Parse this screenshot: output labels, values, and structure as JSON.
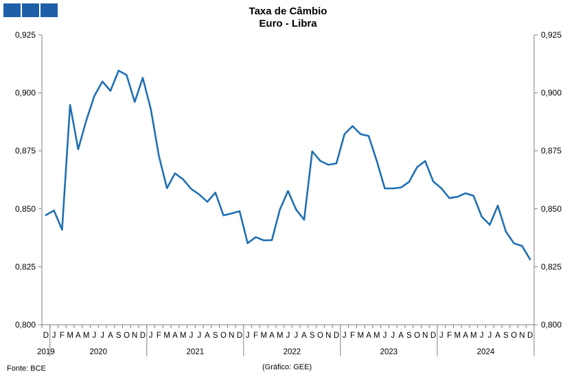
{
  "header": {
    "logo_icon": "gee-logo-icon",
    "logo_color": "#1f5fa8"
  },
  "footer": {
    "source": "Fonte: BCE",
    "credit": "(Gráfico: GEE)"
  },
  "chart_data": {
    "type": "line",
    "title": "Taxa de Câmbio",
    "subtitle": "Euro - Libra",
    "ylim": [
      0.8,
      0.925
    ],
    "yticks": [
      "0,800",
      "0,825",
      "0,850",
      "0,875",
      "0,900",
      "0,925"
    ],
    "y_axes": "both",
    "grid": false,
    "line_color": "#1f6fb2",
    "x": [
      "D",
      "J",
      "F",
      "M",
      "A",
      "M",
      "J",
      "J",
      "A",
      "S",
      "O",
      "N",
      "D",
      "J",
      "F",
      "M",
      "A",
      "M",
      "J",
      "J",
      "A",
      "S",
      "O",
      "N",
      "D",
      "J",
      "F",
      "M",
      "A",
      "M",
      "J",
      "J",
      "A",
      "S",
      "O",
      "N",
      "D",
      "J",
      "F",
      "M",
      "A",
      "M",
      "J",
      "J",
      "A",
      "S",
      "O",
      "N",
      "D",
      "J",
      "F",
      "M",
      "A",
      "M",
      "J",
      "J",
      "A",
      "S",
      "O",
      "N",
      "D"
    ],
    "years": [
      {
        "label": "2019",
        "months": 1
      },
      {
        "label": "2020",
        "months": 12
      },
      {
        "label": "2021",
        "months": 12
      },
      {
        "label": "2022",
        "months": 12
      },
      {
        "label": "2023",
        "months": 12
      },
      {
        "label": "2024",
        "months": 12
      }
    ],
    "series": [
      {
        "values": [
          0.8473,
          0.8493,
          0.841,
          0.8948,
          0.8757,
          0.888,
          0.8987,
          0.9049,
          0.9009,
          0.9096,
          0.9077,
          0.8961,
          0.9065,
          0.893,
          0.8729,
          0.8589,
          0.8653,
          0.8627,
          0.8586,
          0.8562,
          0.853,
          0.857,
          0.8472,
          0.848,
          0.849,
          0.8352,
          0.8378,
          0.8364,
          0.8365,
          0.8497,
          0.8577,
          0.8497,
          0.8453,
          0.8748,
          0.8707,
          0.869,
          0.8696,
          0.8822,
          0.8857,
          0.8822,
          0.8814,
          0.8707,
          0.8588,
          0.8588,
          0.8592,
          0.8616,
          0.868,
          0.8706,
          0.8618,
          0.8589,
          0.8546,
          0.8552,
          0.8567,
          0.8556,
          0.8467,
          0.8431,
          0.8514,
          0.8402,
          0.8351,
          0.834,
          0.8282
        ]
      }
    ]
  }
}
